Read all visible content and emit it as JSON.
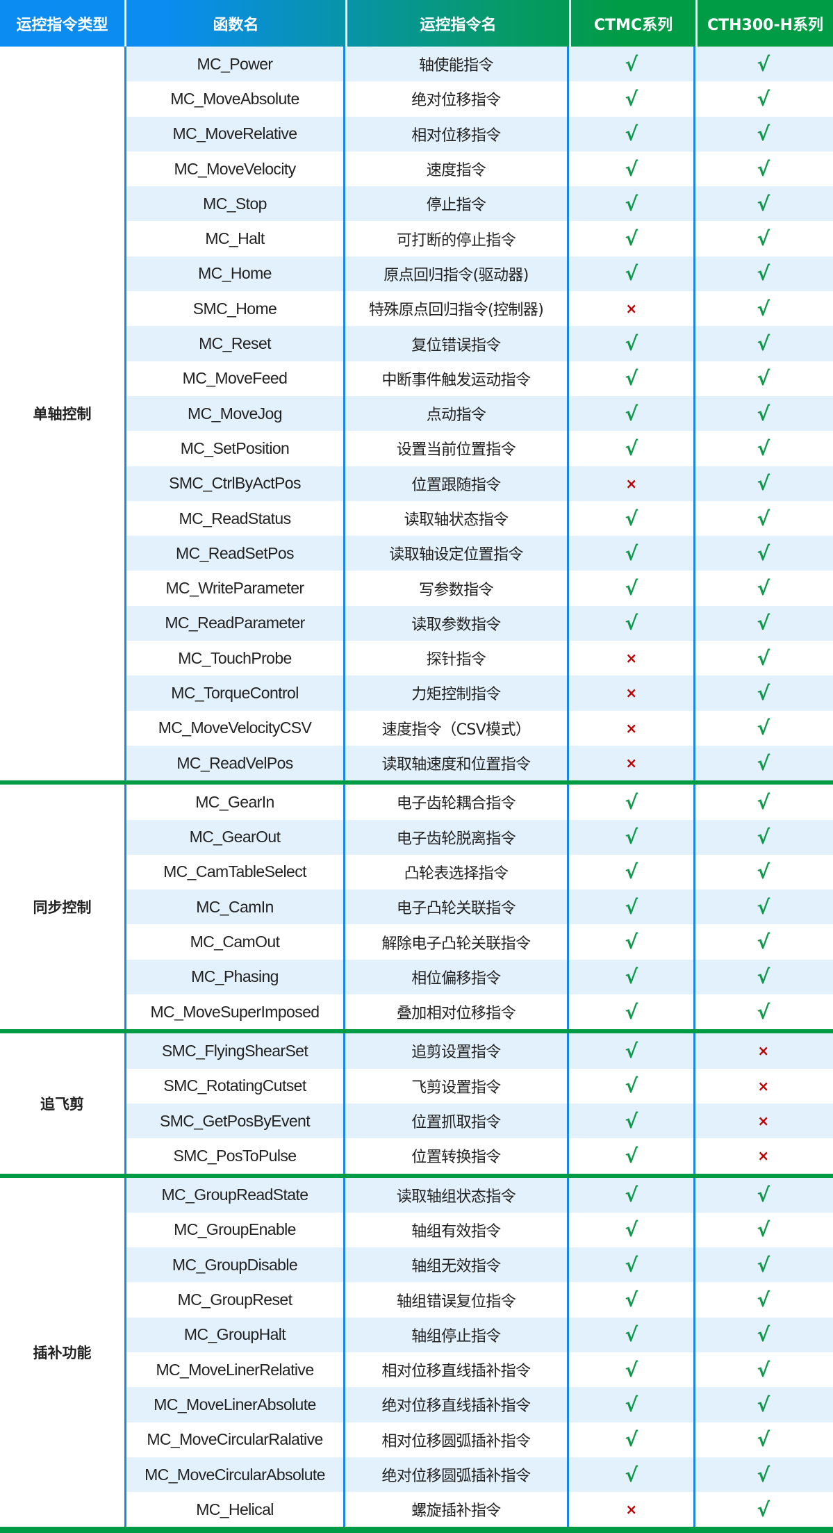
{
  "header": [
    "运控指令类型",
    "函数名",
    "运控指令名",
    "CTMC系列",
    "CTH300-H系列"
  ],
  "colors": {
    "header_start": "#0a8cf2",
    "header_end": "#009b45",
    "separator": "#009b45",
    "row_alt": "#e3f1fd",
    "border": "#1a86e8",
    "check": "#0a9a48",
    "cross": "#c00000"
  },
  "symbols": {
    "yes": "√",
    "no": "×"
  },
  "groups": [
    {
      "category": "单轴控制",
      "rows": [
        [
          "MC_Power",
          "轴使能指令",
          true,
          true
        ],
        [
          "MC_MoveAbsolute",
          "绝对位移指令",
          true,
          true
        ],
        [
          "MC_MoveRelative",
          "相对位移指令",
          true,
          true
        ],
        [
          "MC_MoveVelocity",
          "速度指令",
          true,
          true
        ],
        [
          "MC_Stop",
          "停止指令",
          true,
          true
        ],
        [
          "MC_Halt",
          "可打断的停止指令",
          true,
          true
        ],
        [
          "MC_Home",
          "原点回归指令(驱动器)",
          true,
          true
        ],
        [
          "SMC_Home",
          "特殊原点回归指令(控制器)",
          false,
          true
        ],
        [
          "MC_Reset",
          "复位错误指令",
          true,
          true
        ],
        [
          "MC_MoveFeed",
          "中断事件触发运动指令",
          true,
          true
        ],
        [
          "MC_MoveJog",
          "点动指令",
          true,
          true
        ],
        [
          "MC_SetPosition",
          "设置当前位置指令",
          true,
          true
        ],
        [
          "SMC_CtrlByActPos",
          "位置跟随指令",
          false,
          true
        ],
        [
          "MC_ReadStatus",
          "读取轴状态指令",
          true,
          true
        ],
        [
          "MC_ReadSetPos",
          "读取轴设定位置指令",
          true,
          true
        ],
        [
          "MC_WriteParameter",
          "写参数指令",
          true,
          true
        ],
        [
          "MC_ReadParameter",
          "读取参数指令",
          true,
          true
        ],
        [
          "MC_TouchProbe",
          "探针指令",
          false,
          true
        ],
        [
          "MC_TorqueControl",
          "力矩控制指令",
          false,
          true
        ],
        [
          "MC_MoveVelocityCSV",
          "速度指令（CSV模式）",
          false,
          true
        ],
        [
          "MC_ReadVelPos",
          "读取轴速度和位置指令",
          false,
          true
        ]
      ]
    },
    {
      "category": "同步控制",
      "rows": [
        [
          "MC_GearIn",
          "电子齿轮耦合指令",
          true,
          true
        ],
        [
          "MC_GearOut",
          "电子齿轮脱离指令",
          true,
          true
        ],
        [
          "MC_CamTableSelect",
          "凸轮表选择指令",
          true,
          true
        ],
        [
          "MC_CamIn",
          "电子凸轮关联指令",
          true,
          true
        ],
        [
          "MC_CamOut",
          "解除电子凸轮关联指令",
          true,
          true
        ],
        [
          "MC_Phasing",
          "相位偏移指令",
          true,
          true
        ],
        [
          "MC_MoveSuperImposed",
          "叠加相对位移指令",
          true,
          true
        ]
      ]
    },
    {
      "category": "追飞剪",
      "rows": [
        [
          "SMC_FlyingShearSet",
          "追剪设置指令",
          true,
          false
        ],
        [
          "SMC_RotatingCutset",
          "飞剪设置指令",
          true,
          false
        ],
        [
          "SMC_GetPosByEvent",
          "位置抓取指令",
          true,
          false
        ],
        [
          "SMC_PosToPulse",
          "位置转换指令",
          true,
          false
        ]
      ]
    },
    {
      "category": "插补功能",
      "rows": [
        [
          "MC_GroupReadState",
          "读取轴组状态指令",
          true,
          true
        ],
        [
          "MC_GroupEnable",
          "轴组有效指令",
          true,
          true
        ],
        [
          "MC_GroupDisable",
          "轴组无效指令",
          true,
          true
        ],
        [
          "MC_GroupReset",
          "轴组错误复位指令",
          true,
          true
        ],
        [
          "MC_GroupHalt",
          "轴组停止指令",
          true,
          true
        ],
        [
          "MC_MoveLinerRelative",
          "相对位移直线插补指令",
          true,
          true
        ],
        [
          "MC_MoveLinerAbsolute",
          "绝对位移直线插补指令",
          true,
          true
        ],
        [
          "MC_MoveCircularRalative",
          "相对位移圆弧插补指令",
          true,
          true
        ],
        [
          "MC_MoveCircularAbsolute",
          "绝对位移圆弧插补指令",
          true,
          true
        ],
        [
          "MC_Helical",
          "螺旋插补指令",
          false,
          true
        ]
      ]
    }
  ]
}
